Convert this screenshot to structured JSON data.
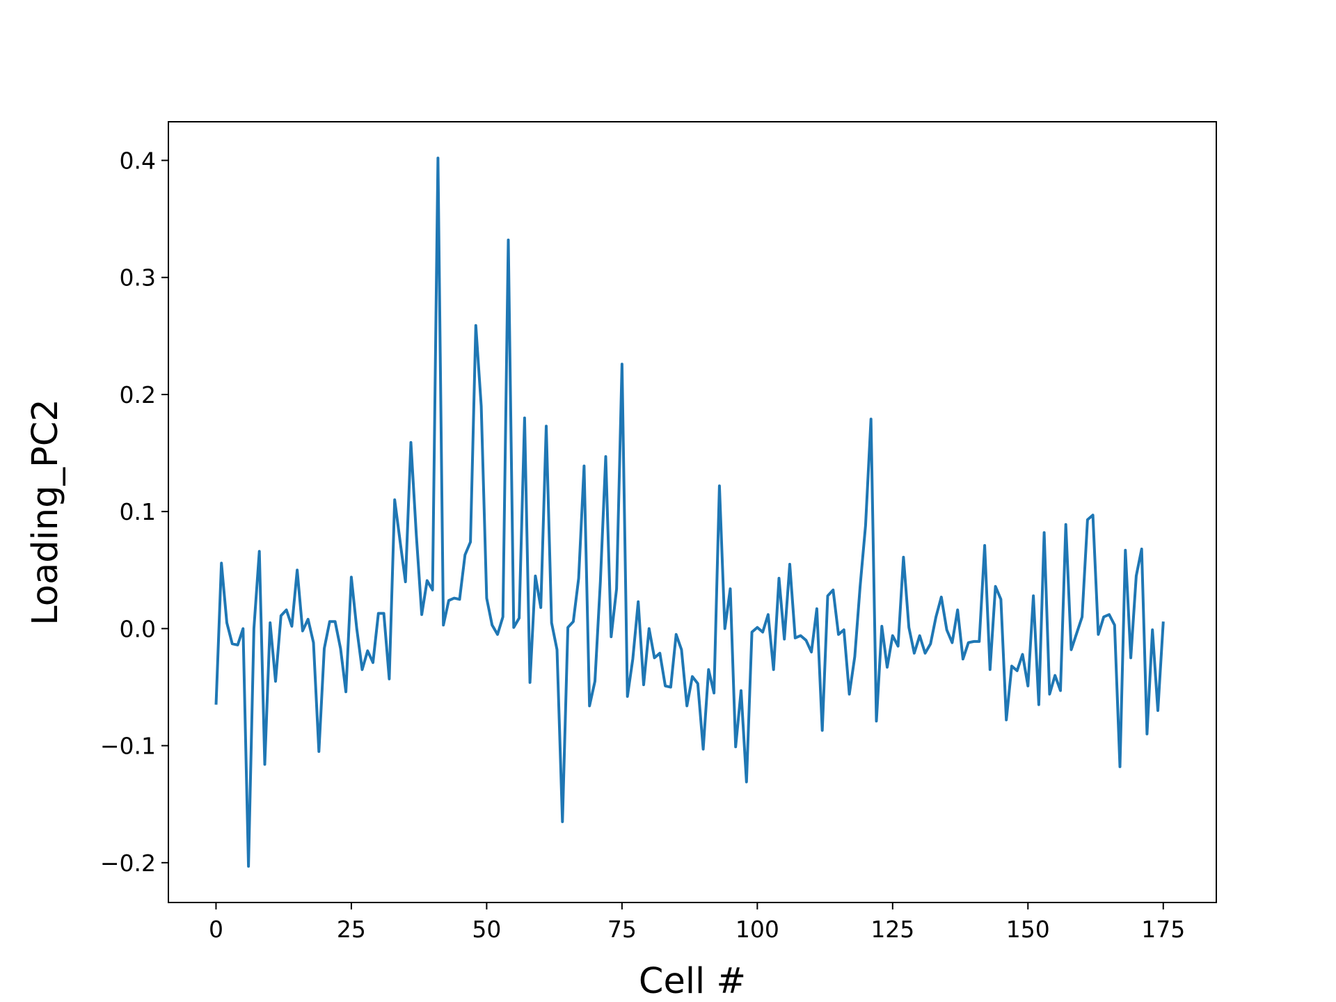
{
  "chart_data": {
    "type": "line",
    "title": "",
    "xlabel": "Cell #",
    "ylabel": "Loading_PC2",
    "xlim": [
      -8.8,
      184.8
    ],
    "ylim": [
      -0.234,
      0.433
    ],
    "grid": false,
    "line_color": "#1f77b4",
    "x_ticks": [
      {
        "value": 0,
        "label": "0"
      },
      {
        "value": 25,
        "label": "25"
      },
      {
        "value": 50,
        "label": "50"
      },
      {
        "value": 75,
        "label": "75"
      },
      {
        "value": 100,
        "label": "100"
      },
      {
        "value": 125,
        "label": "125"
      },
      {
        "value": 150,
        "label": "150"
      },
      {
        "value": 175,
        "label": "175"
      }
    ],
    "y_ticks": [
      {
        "value": -0.2,
        "label": "−0.2"
      },
      {
        "value": -0.1,
        "label": "−0.1"
      },
      {
        "value": 0.0,
        "label": "0.0"
      },
      {
        "value": 0.1,
        "label": "0.1"
      },
      {
        "value": 0.2,
        "label": "0.2"
      },
      {
        "value": 0.3,
        "label": "0.3"
      },
      {
        "value": 0.4,
        "label": "0.4"
      }
    ],
    "series": [
      {
        "x_start": 0,
        "x_step": 1,
        "values": [
          -0.065,
          0.056,
          0.005,
          -0.013,
          -0.014,
          0.0,
          -0.203,
          0.0,
          0.066,
          -0.116,
          0.005,
          -0.045,
          0.011,
          0.016,
          0.002,
          0.05,
          -0.002,
          0.008,
          -0.012,
          -0.105,
          -0.017,
          0.006,
          0.006,
          -0.017,
          -0.054,
          0.044,
          0.0,
          -0.035,
          -0.019,
          -0.029,
          0.013,
          0.013,
          -0.043,
          0.11,
          0.075,
          0.04,
          0.159,
          0.08,
          0.012,
          0.041,
          0.033,
          0.402,
          0.003,
          0.024,
          0.026,
          0.025,
          0.063,
          0.074,
          0.259,
          0.19,
          0.026,
          0.003,
          -0.005,
          0.01,
          0.332,
          0.001,
          0.009,
          0.18,
          -0.046,
          0.045,
          0.018,
          0.173,
          0.005,
          -0.018,
          -0.165,
          0.001,
          0.006,
          0.043,
          0.139,
          -0.066,
          -0.045,
          0.04,
          0.147,
          -0.007,
          0.034,
          0.226,
          -0.058,
          -0.026,
          0.023,
          -0.048,
          0.0,
          -0.025,
          -0.021,
          -0.049,
          -0.05,
          -0.005,
          -0.018,
          -0.066,
          -0.041,
          -0.047,
          -0.103,
          -0.035,
          -0.055,
          0.122,
          0.0,
          0.034,
          -0.101,
          -0.053,
          -0.131,
          -0.003,
          0.001,
          -0.003,
          0.012,
          -0.035,
          0.043,
          -0.009,
          0.055,
          -0.008,
          -0.006,
          -0.01,
          -0.02,
          0.017,
          -0.087,
          0.028,
          0.033,
          -0.005,
          -0.001,
          -0.056,
          -0.024,
          0.036,
          0.088,
          0.179,
          -0.079,
          0.002,
          -0.033,
          -0.006,
          -0.015,
          0.061,
          0.001,
          -0.021,
          -0.006,
          -0.021,
          -0.013,
          0.01,
          0.027,
          -0.001,
          -0.012,
          0.016,
          -0.026,
          -0.012,
          -0.011,
          -0.011,
          0.071,
          -0.035,
          0.036,
          0.025,
          -0.078,
          -0.032,
          -0.036,
          -0.022,
          -0.049,
          0.028,
          -0.065,
          0.082,
          -0.056,
          -0.04,
          -0.053,
          0.089,
          -0.018,
          -0.004,
          0.01,
          0.093,
          0.097,
          -0.005,
          0.01,
          0.012,
          0.003,
          -0.118,
          0.067,
          -0.025,
          0.045,
          0.068,
          -0.09,
          -0.001,
          -0.07,
          0.006
        ]
      }
    ]
  }
}
